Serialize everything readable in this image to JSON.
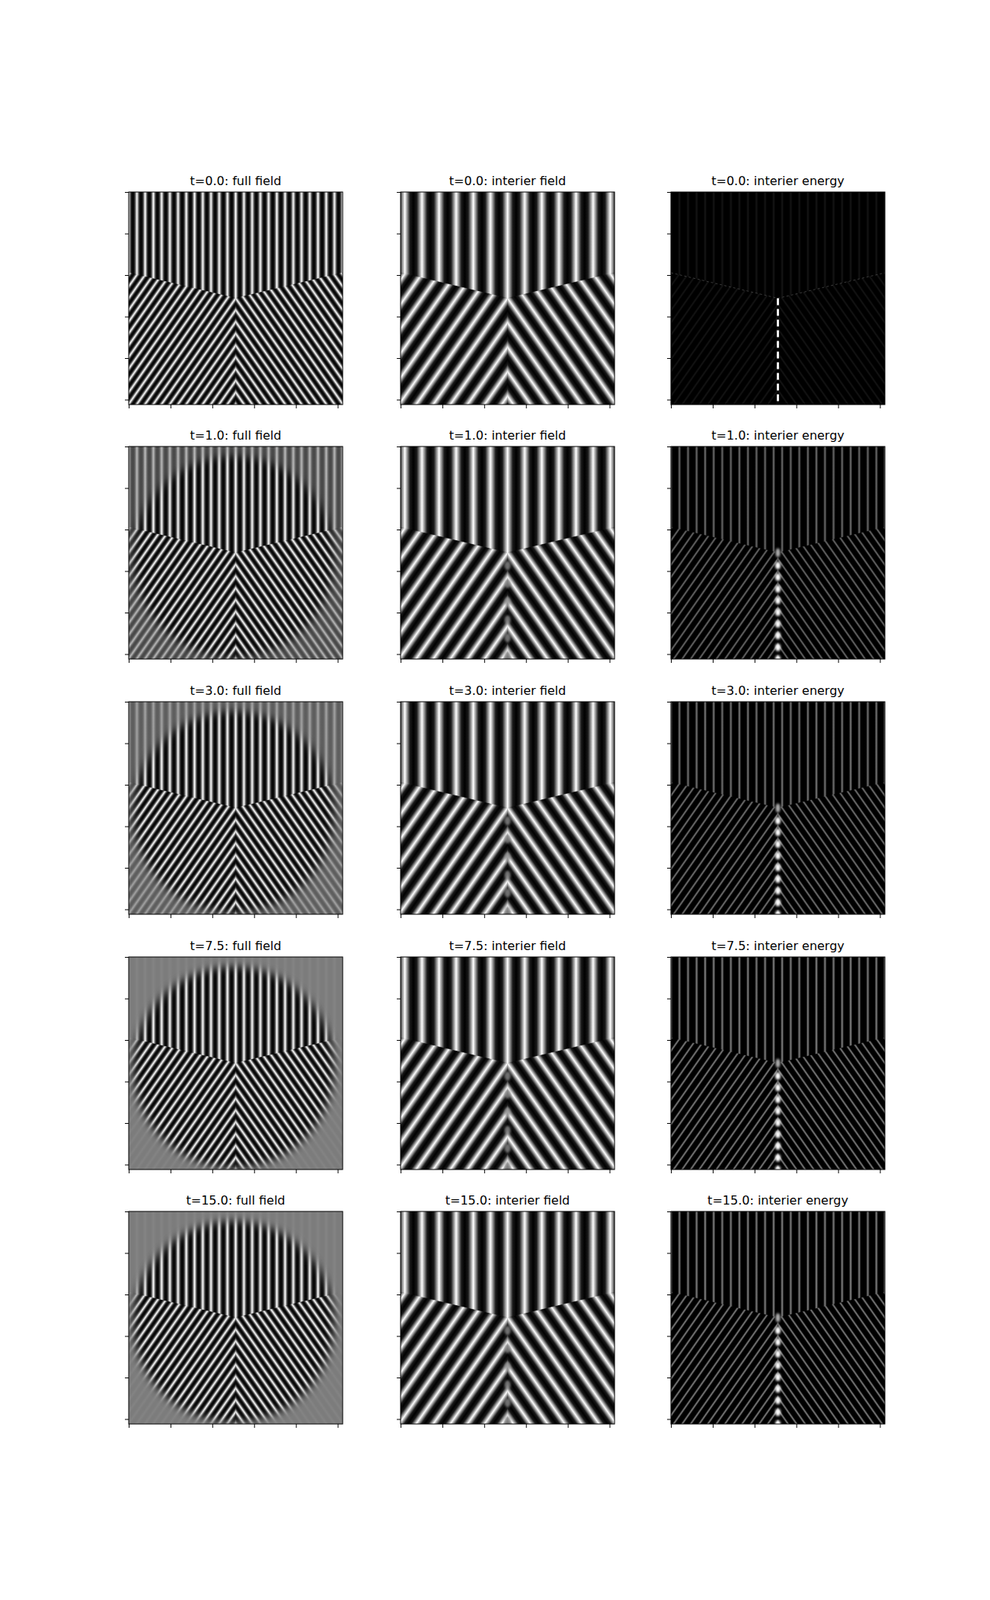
{
  "chart_data": [
    {
      "type": "image",
      "title": "t=0.0: full field",
      "xlim": [
        -0.5,
        255.5
      ],
      "ylim": [
        255.5,
        -0.5
      ],
      "xticks": [
        0,
        50,
        100,
        150,
        200,
        250
      ],
      "yticks": [
        0,
        50,
        100,
        150,
        200,
        250
      ],
      "tick_labels": false
    },
    {
      "type": "image",
      "title": "t=0.0: interier field",
      "xlim": [
        -0.5,
        255.5
      ],
      "ylim": [
        255.5,
        -0.5
      ],
      "xticks": [
        0,
        50,
        100,
        150,
        200,
        250
      ],
      "yticks": [
        0,
        50,
        100,
        150,
        200,
        250
      ],
      "tick_labels": false
    },
    {
      "type": "image",
      "title": "t=0.0: interier energy",
      "xlim": [
        -0.5,
        255.5
      ],
      "ylim": [
        255.5,
        -0.5
      ],
      "xticks": [
        0,
        50,
        100,
        150,
        200,
        250
      ],
      "yticks": [
        0,
        50,
        100,
        150,
        200,
        250
      ],
      "tick_labels": false
    },
    {
      "type": "image",
      "title": "t=1.0: full field",
      "xlim": [
        -0.5,
        255.5
      ],
      "ylim": [
        255.5,
        -0.5
      ],
      "xticks": [
        0,
        50,
        100,
        150,
        200,
        250
      ],
      "yticks": [
        0,
        50,
        100,
        150,
        200,
        250
      ],
      "tick_labels": false
    },
    {
      "type": "image",
      "title": "t=1.0: interier field",
      "xlim": [
        -0.5,
        255.5
      ],
      "ylim": [
        255.5,
        -0.5
      ],
      "xticks": [
        0,
        50,
        100,
        150,
        200,
        250
      ],
      "yticks": [
        0,
        50,
        100,
        150,
        200,
        250
      ],
      "tick_labels": false
    },
    {
      "type": "image",
      "title": "t=1.0: interier energy",
      "xlim": [
        -0.5,
        255.5
      ],
      "ylim": [
        255.5,
        -0.5
      ],
      "xticks": [
        0,
        50,
        100,
        150,
        200,
        250
      ],
      "yticks": [
        0,
        50,
        100,
        150,
        200,
        250
      ],
      "tick_labels": false
    },
    {
      "type": "image",
      "title": "t=3.0: full field",
      "xlim": [
        -0.5,
        255.5
      ],
      "ylim": [
        255.5,
        -0.5
      ],
      "xticks": [
        0,
        50,
        100,
        150,
        200,
        250
      ],
      "yticks": [
        0,
        50,
        100,
        150,
        200,
        250
      ],
      "tick_labels": false
    },
    {
      "type": "image",
      "title": "t=3.0: interier field",
      "xlim": [
        -0.5,
        255.5
      ],
      "ylim": [
        255.5,
        -0.5
      ],
      "xticks": [
        0,
        50,
        100,
        150,
        200,
        250
      ],
      "yticks": [
        0,
        50,
        100,
        150,
        200,
        250
      ],
      "tick_labels": false
    },
    {
      "type": "image",
      "title": "t=3.0: interier energy",
      "xlim": [
        -0.5,
        255.5
      ],
      "ylim": [
        255.5,
        -0.5
      ],
      "xticks": [
        0,
        50,
        100,
        150,
        200,
        250
      ],
      "yticks": [
        0,
        50,
        100,
        150,
        200,
        250
      ],
      "tick_labels": false
    },
    {
      "type": "image",
      "title": "t=7.5: full field",
      "xlim": [
        -0.5,
        255.5
      ],
      "ylim": [
        255.5,
        -0.5
      ],
      "xticks": [
        0,
        50,
        100,
        150,
        200,
        250
      ],
      "yticks": [
        0,
        50,
        100,
        150,
        200,
        250
      ],
      "tick_labels": false
    },
    {
      "type": "image",
      "title": "t=7.5: interier field",
      "xlim": [
        -0.5,
        255.5
      ],
      "ylim": [
        255.5,
        -0.5
      ],
      "xticks": [
        0,
        50,
        100,
        150,
        200,
        250
      ],
      "yticks": [
        0,
        50,
        100,
        150,
        200,
        250
      ],
      "tick_labels": false
    },
    {
      "type": "image",
      "title": "t=7.5: interier energy",
      "xlim": [
        -0.5,
        255.5
      ],
      "ylim": [
        255.5,
        -0.5
      ],
      "xticks": [
        0,
        50,
        100,
        150,
        200,
        250
      ],
      "yticks": [
        0,
        50,
        100,
        150,
        200,
        250
      ],
      "tick_labels": false
    },
    {
      "type": "image",
      "title": "t=15.0: full field",
      "xlim": [
        -0.5,
        255.5
      ],
      "ylim": [
        255.5,
        -0.5
      ],
      "xticks": [
        0,
        50,
        100,
        150,
        200,
        250
      ],
      "yticks": [
        0,
        50,
        100,
        150,
        200,
        250
      ],
      "tick_labels": false
    },
    {
      "type": "image",
      "title": "t=15.0: interier field",
      "xlim": [
        -0.5,
        255.5
      ],
      "ylim": [
        255.5,
        -0.5
      ],
      "xticks": [
        0,
        50,
        100,
        150,
        200,
        250
      ],
      "yticks": [
        0,
        50,
        100,
        150,
        200,
        250
      ],
      "tick_labels": false
    },
    {
      "type": "image",
      "title": "t=15.0: interier energy",
      "xlim": [
        -0.5,
        255.5
      ],
      "ylim": [
        255.5,
        -0.5
      ],
      "xticks": [
        0,
        50,
        100,
        150,
        200,
        250
      ],
      "yticks": [
        0,
        50,
        100,
        150,
        200,
        250
      ],
      "tick_labels": false
    }
  ]
}
